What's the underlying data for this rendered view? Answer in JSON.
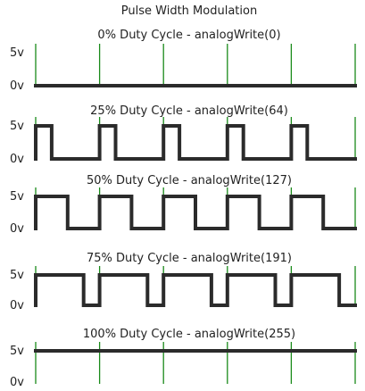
{
  "title": "Pulse Width Modulation",
  "axis": {
    "high_label": "5v",
    "low_label": "0v"
  },
  "periods": 5,
  "panels": [
    {
      "caption": "0% Duty Cycle - analogWrite(0)",
      "duty": 0.0
    },
    {
      "caption": "25% Duty Cycle - analogWrite(64)",
      "duty": 0.25
    },
    {
      "caption": "50% Duty Cycle - analogWrite(127)",
      "duty": 0.5
    },
    {
      "caption": "75% Duty Cycle - analogWrite(191)",
      "duty": 0.75
    },
    {
      "caption": "100% Duty Cycle - analogWrite(255)",
      "duty": 1.0
    }
  ],
  "colors": {
    "wave": "#2b2b2b",
    "period_marker": "#1a8a1a",
    "text": "#222222"
  }
}
